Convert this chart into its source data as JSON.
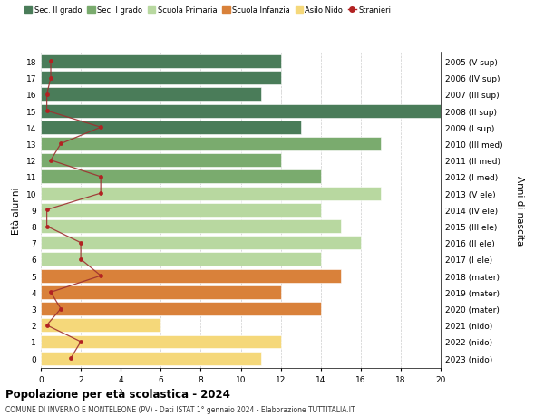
{
  "ages": [
    18,
    17,
    16,
    15,
    14,
    13,
    12,
    11,
    10,
    9,
    8,
    7,
    6,
    5,
    4,
    3,
    2,
    1,
    0
  ],
  "right_labels": [
    "2005 (V sup)",
    "2006 (IV sup)",
    "2007 (III sup)",
    "2008 (II sup)",
    "2009 (I sup)",
    "2010 (III med)",
    "2011 (II med)",
    "2012 (I med)",
    "2013 (V ele)",
    "2014 (IV ele)",
    "2015 (III ele)",
    "2016 (II ele)",
    "2017 (I ele)",
    "2018 (mater)",
    "2019 (mater)",
    "2020 (mater)",
    "2021 (nido)",
    "2022 (nido)",
    "2023 (nido)"
  ],
  "bar_values": [
    12,
    12,
    11,
    20,
    13,
    17,
    12,
    14,
    17,
    14,
    15,
    16,
    14,
    15,
    12,
    14,
    6,
    12,
    11
  ],
  "bar_colors": [
    "#4a7c59",
    "#4a7c59",
    "#4a7c59",
    "#4a7c59",
    "#4a7c59",
    "#7aab6e",
    "#7aab6e",
    "#7aab6e",
    "#b8d8a0",
    "#b8d8a0",
    "#b8d8a0",
    "#b8d8a0",
    "#b8d8a0",
    "#d9813a",
    "#d9813a",
    "#d9813a",
    "#f5d87a",
    "#f5d87a",
    "#f5d87a"
  ],
  "stranieri_values": [
    0.5,
    0.5,
    0.3,
    0.3,
    3,
    1,
    0.5,
    3,
    3,
    0.3,
    0.3,
    2,
    2,
    3,
    0.5,
    1,
    0.3,
    2,
    1.5
  ],
  "ylabel_left": "Età alunni",
  "ylabel_right": "Anni di nascita",
  "title": "Popolazione per età scolastica - 2024",
  "subtitle": "COMUNE DI INVERNO E MONTELEONE (PV) - Dati ISTAT 1° gennaio 2024 - Elaborazione TUTTITALIA.IT",
  "xlim": [
    0,
    20
  ],
  "xticks": [
    0,
    2,
    4,
    6,
    8,
    10,
    12,
    14,
    16,
    18,
    20
  ],
  "legend_labels": [
    "Sec. II grado",
    "Sec. I grado",
    "Scuola Primaria",
    "Scuola Infanzia",
    "Asilo Nido",
    "Stranieri"
  ],
  "legend_colors": [
    "#4a7c59",
    "#7aab6e",
    "#b8d8a0",
    "#d9813a",
    "#f5d87a",
    "#b22222"
  ],
  "bar_height": 0.82,
  "bg_color": "#ffffff",
  "grid_color": "#cccccc",
  "stranieri_color": "#b22222",
  "stranieri_line_color": "#9e3030"
}
